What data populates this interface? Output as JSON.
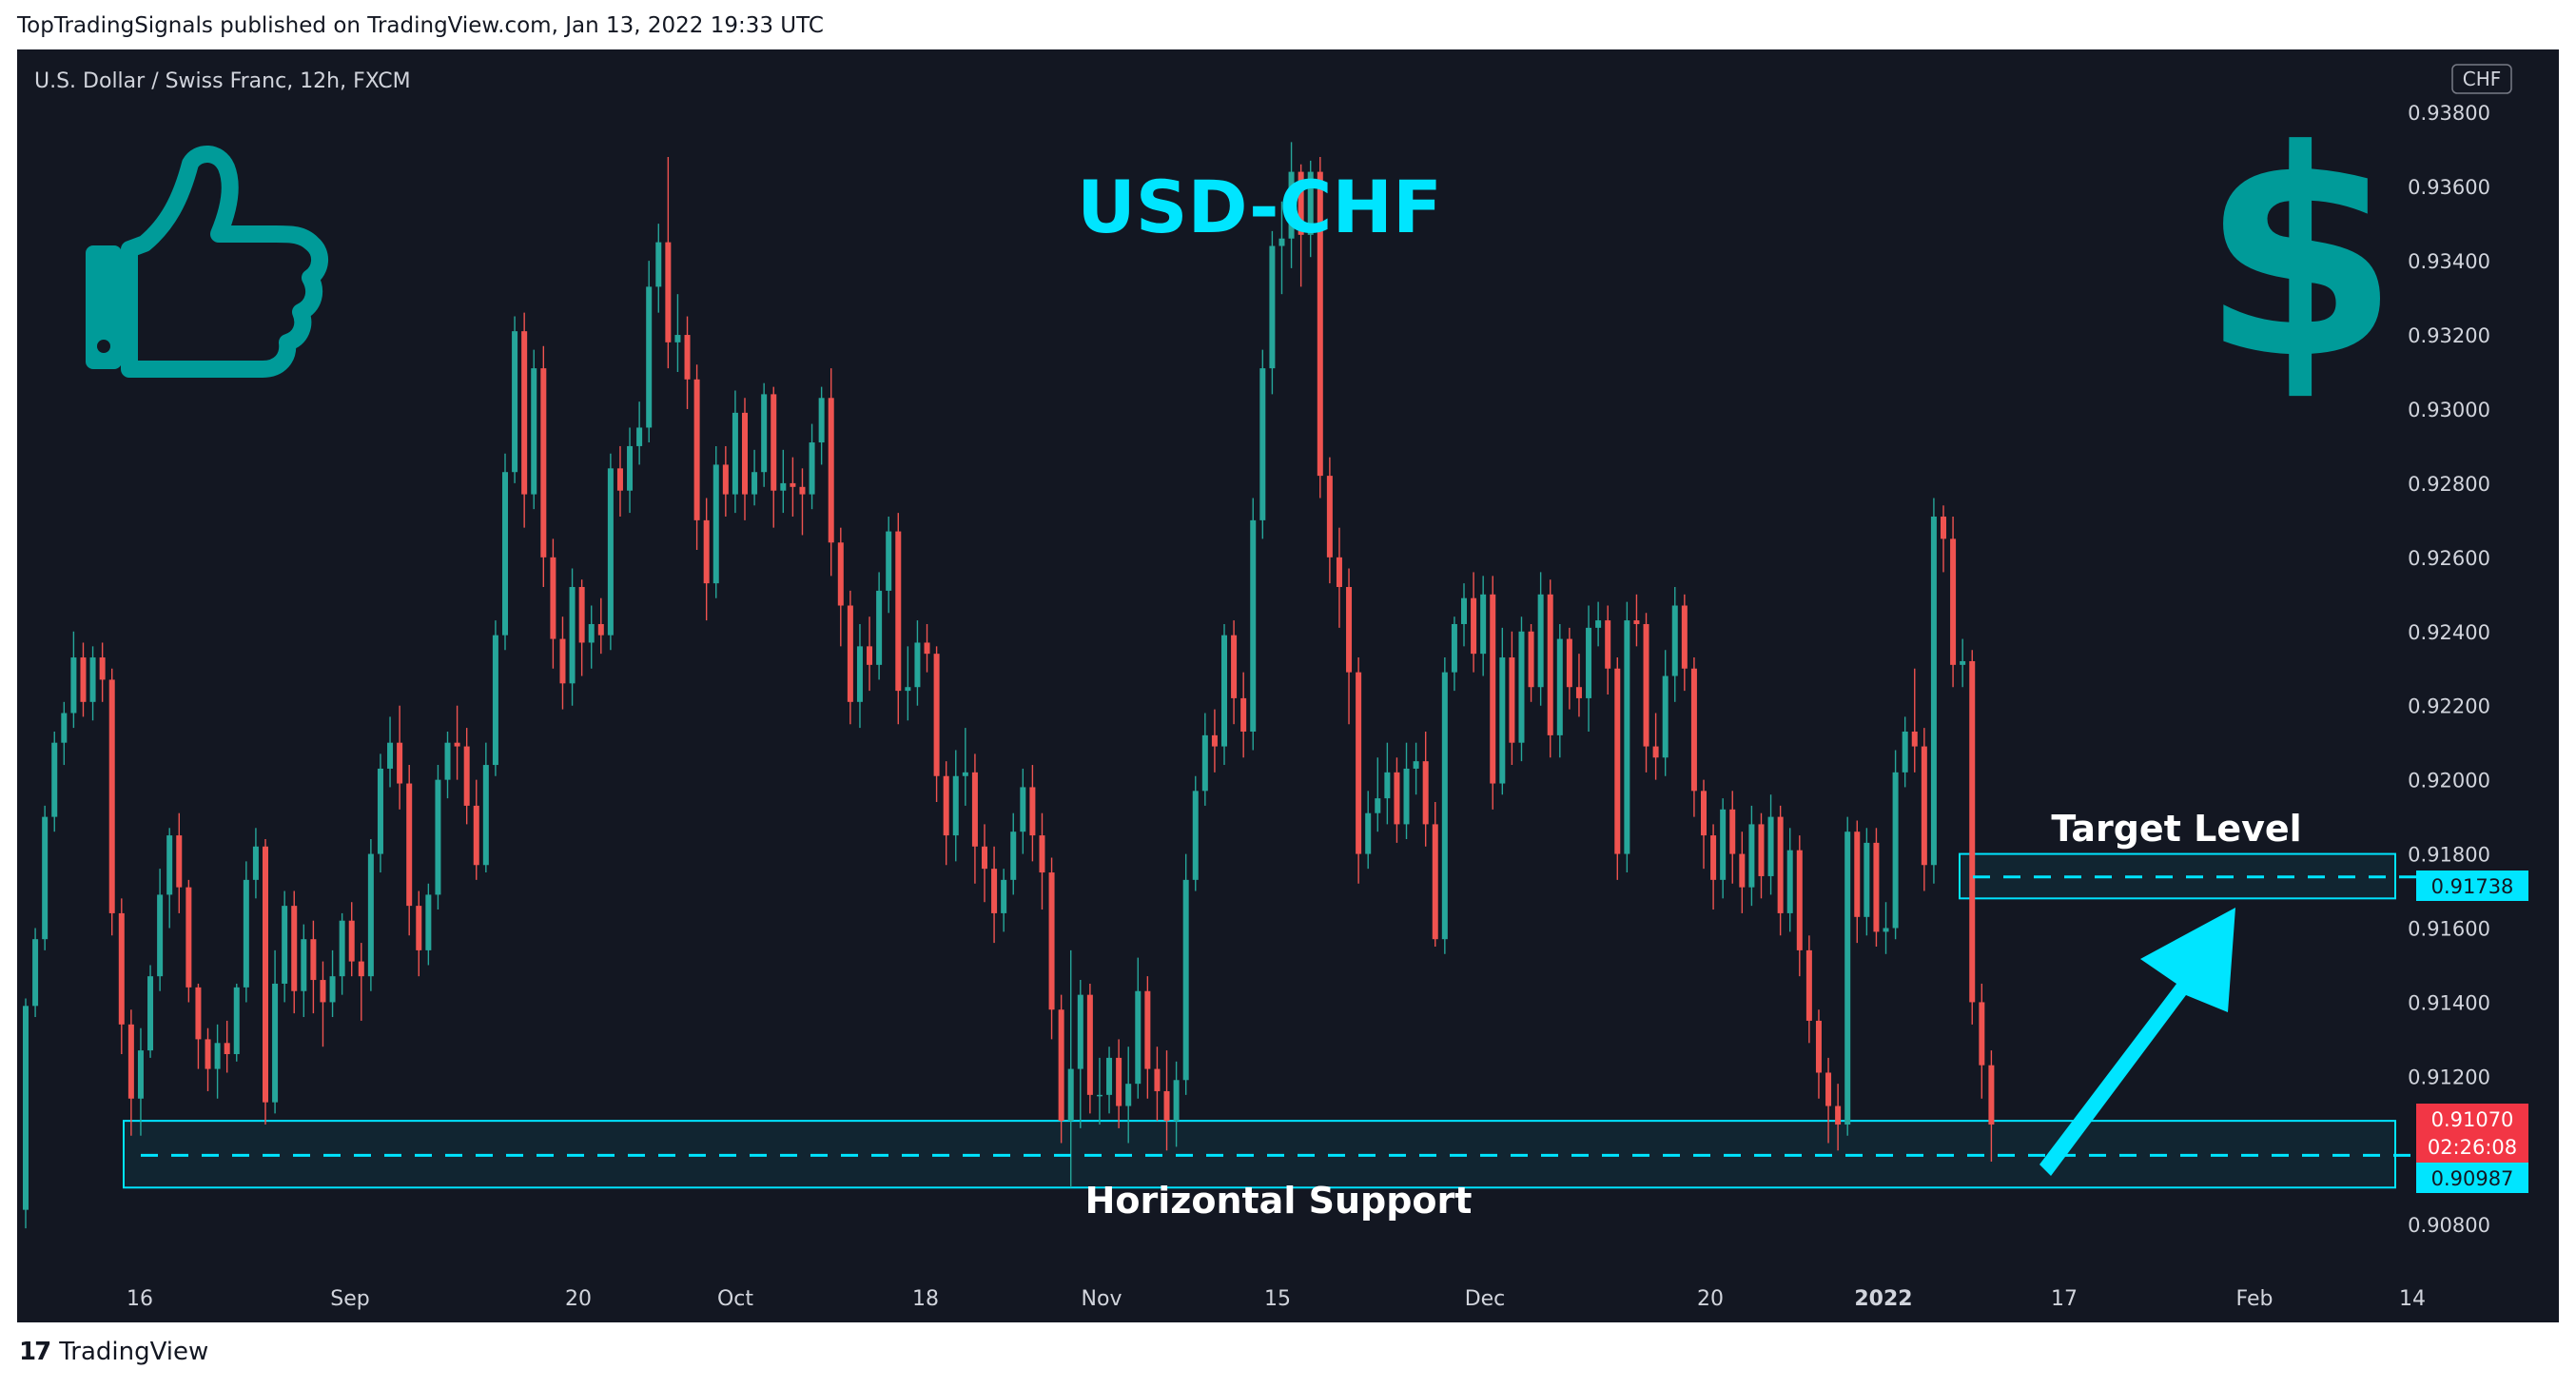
{
  "publisher_line": "TopTradingSignals published on TradingView.com, Jan 13, 2022 19:33 UTC",
  "footer": {
    "logo_glyph": "17",
    "brand": "TradingView"
  },
  "colors": {
    "background": "#131722",
    "up": "#26a69a",
    "down": "#ef5350",
    "accent": "#00e5ff",
    "icon_teal": "#009b99",
    "axis_text": "#d1d4dc"
  },
  "icons": {
    "left": "thumbs-up-icon",
    "right": "dollar-sign-icon"
  },
  "chart_data": {
    "type": "candlestick",
    "symbol_line": "U.S. Dollar / Swiss Franc, 12h, FXCM",
    "title": "USD-CHF",
    "currency_badge": "CHF",
    "y_ticks": [
      "0.93800",
      "0.93600",
      "0.93400",
      "0.93200",
      "0.93000",
      "0.92800",
      "0.92600",
      "0.92400",
      "0.92200",
      "0.92000",
      "0.91800",
      "0.91600",
      "0.91400",
      "0.91200",
      "0.90800"
    ],
    "ylim": [
      0.9068,
      0.9397
    ],
    "x_ticks": [
      {
        "label": "16",
        "bold": false
      },
      {
        "label": "Sep",
        "bold": false
      },
      {
        "label": "20",
        "bold": false
      },
      {
        "label": "Oct",
        "bold": false
      },
      {
        "label": "18",
        "bold": false
      },
      {
        "label": "Nov",
        "bold": false
      },
      {
        "label": "15",
        "bold": false
      },
      {
        "label": "Dec",
        "bold": false
      },
      {
        "label": "20",
        "bold": false
      },
      {
        "label": "2022",
        "bold": true
      },
      {
        "label": "17",
        "bold": false
      },
      {
        "label": "Feb",
        "bold": false
      },
      {
        "label": "14",
        "bold": false
      }
    ],
    "annotations": {
      "support_label": "Horizontal Support",
      "support_level": 0.90987,
      "support_zone": [
        0.909,
        0.9108
      ],
      "target_label": "Target Level",
      "target_level": 0.91738,
      "target_zone": [
        0.9168,
        0.918
      ]
    },
    "price_labels": {
      "target": "0.91738",
      "last_price": "0.91070",
      "countdown": "02:26:08",
      "support": "0.90987"
    },
    "candles": [
      [
        0.9084,
        0.9139,
        0.9079,
        0.9141
      ],
      [
        0.9139,
        0.9157,
        0.9136,
        0.916
      ],
      [
        0.9157,
        0.919,
        0.9154,
        0.9193
      ],
      [
        0.919,
        0.921,
        0.9186,
        0.9213
      ],
      [
        0.921,
        0.9218,
        0.9204,
        0.9221
      ],
      [
        0.9218,
        0.9233,
        0.9214,
        0.924
      ],
      [
        0.9233,
        0.9221,
        0.9217,
        0.9237
      ],
      [
        0.9221,
        0.9233,
        0.9216,
        0.9236
      ],
      [
        0.9233,
        0.9227,
        0.9221,
        0.9237
      ],
      [
        0.9227,
        0.9164,
        0.9158,
        0.923
      ],
      [
        0.9164,
        0.9134,
        0.9126,
        0.9168
      ],
      [
        0.9134,
        0.9114,
        0.9104,
        0.9138
      ],
      [
        0.9114,
        0.9127,
        0.9104,
        0.9133
      ],
      [
        0.9127,
        0.9147,
        0.9125,
        0.915
      ],
      [
        0.9147,
        0.9169,
        0.9143,
        0.9176
      ],
      [
        0.9169,
        0.9185,
        0.916,
        0.9187
      ],
      [
        0.9185,
        0.9171,
        0.9164,
        0.9191
      ],
      [
        0.9171,
        0.9144,
        0.914,
        0.9173
      ],
      [
        0.9144,
        0.913,
        0.9122,
        0.9145
      ],
      [
        0.913,
        0.9122,
        0.9116,
        0.9133
      ],
      [
        0.9122,
        0.9129,
        0.9114,
        0.9134
      ],
      [
        0.9129,
        0.9126,
        0.9121,
        0.9135
      ],
      [
        0.9126,
        0.9144,
        0.9124,
        0.9145
      ],
      [
        0.9144,
        0.9173,
        0.914,
        0.9178
      ],
      [
        0.9173,
        0.9182,
        0.9168,
        0.9187
      ],
      [
        0.9182,
        0.9113,
        0.9107,
        0.9184
      ],
      [
        0.9113,
        0.9145,
        0.911,
        0.9154
      ],
      [
        0.9145,
        0.9166,
        0.914,
        0.917
      ],
      [
        0.9166,
        0.9143,
        0.9137,
        0.917
      ],
      [
        0.9143,
        0.9157,
        0.9136,
        0.9161
      ],
      [
        0.9157,
        0.9146,
        0.9137,
        0.9162
      ],
      [
        0.9146,
        0.914,
        0.9128,
        0.9151
      ],
      [
        0.914,
        0.9147,
        0.9136,
        0.9154
      ],
      [
        0.9147,
        0.9162,
        0.9142,
        0.9164
      ],
      [
        0.9162,
        0.9151,
        0.9147,
        0.9167
      ],
      [
        0.9151,
        0.9147,
        0.9135,
        0.9156
      ],
      [
        0.9147,
        0.918,
        0.9143,
        0.9184
      ],
      [
        0.918,
        0.9203,
        0.9175,
        0.9207
      ],
      [
        0.9203,
        0.921,
        0.9198,
        0.9217
      ],
      [
        0.921,
        0.9199,
        0.9192,
        0.922
      ],
      [
        0.9199,
        0.9166,
        0.9158,
        0.9204
      ],
      [
        0.9166,
        0.9154,
        0.9147,
        0.917
      ],
      [
        0.9154,
        0.9169,
        0.915,
        0.9172
      ],
      [
        0.9169,
        0.92,
        0.9165,
        0.9204
      ],
      [
        0.92,
        0.921,
        0.9195,
        0.9213
      ],
      [
        0.921,
        0.9209,
        0.92,
        0.922
      ],
      [
        0.9209,
        0.9193,
        0.9188,
        0.9214
      ],
      [
        0.9193,
        0.9177,
        0.9173,
        0.92
      ],
      [
        0.9177,
        0.9204,
        0.9175,
        0.921
      ],
      [
        0.9204,
        0.9239,
        0.9201,
        0.9243
      ],
      [
        0.9239,
        0.9283,
        0.9235,
        0.9288
      ],
      [
        0.9283,
        0.9321,
        0.928,
        0.9325
      ],
      [
        0.9321,
        0.9277,
        0.9268,
        0.9326
      ],
      [
        0.9277,
        0.9311,
        0.9273,
        0.9316
      ],
      [
        0.9311,
        0.926,
        0.9252,
        0.9317
      ],
      [
        0.926,
        0.9238,
        0.923,
        0.9265
      ],
      [
        0.9238,
        0.9226,
        0.9219,
        0.9244
      ],
      [
        0.9226,
        0.9252,
        0.922,
        0.9257
      ],
      [
        0.9252,
        0.9237,
        0.9228,
        0.9254
      ],
      [
        0.9237,
        0.9242,
        0.923,
        0.9247
      ],
      [
        0.9242,
        0.9239,
        0.9234,
        0.9249
      ],
      [
        0.9239,
        0.9284,
        0.9235,
        0.9288
      ],
      [
        0.9284,
        0.9278,
        0.9271,
        0.929
      ],
      [
        0.9278,
        0.929,
        0.9272,
        0.9295
      ],
      [
        0.929,
        0.9295,
        0.9285,
        0.9302
      ],
      [
        0.9295,
        0.9333,
        0.9291,
        0.934
      ],
      [
        0.9333,
        0.9345,
        0.9326,
        0.935
      ],
      [
        0.9345,
        0.9318,
        0.9311,
        0.9368
      ],
      [
        0.9318,
        0.932,
        0.931,
        0.9331
      ],
      [
        0.932,
        0.9308,
        0.93,
        0.9325
      ],
      [
        0.9308,
        0.927,
        0.9262,
        0.9312
      ],
      [
        0.927,
        0.9253,
        0.9243,
        0.9276
      ],
      [
        0.9253,
        0.9285,
        0.9249,
        0.929
      ],
      [
        0.9285,
        0.9277,
        0.9271,
        0.929
      ],
      [
        0.9277,
        0.9299,
        0.9272,
        0.9305
      ],
      [
        0.9299,
        0.9277,
        0.927,
        0.9303
      ],
      [
        0.9277,
        0.9283,
        0.9274,
        0.9289
      ],
      [
        0.9283,
        0.9304,
        0.9279,
        0.9307
      ],
      [
        0.9304,
        0.9278,
        0.9268,
        0.9306
      ],
      [
        0.9278,
        0.928,
        0.9272,
        0.9289
      ],
      [
        0.928,
        0.9279,
        0.9271,
        0.9287
      ],
      [
        0.9279,
        0.9277,
        0.9266,
        0.9284
      ],
      [
        0.9277,
        0.9291,
        0.9273,
        0.9296
      ],
      [
        0.9291,
        0.9303,
        0.9285,
        0.9306
      ],
      [
        0.9303,
        0.9264,
        0.9255,
        0.9311
      ],
      [
        0.9264,
        0.9247,
        0.9236,
        0.9268
      ],
      [
        0.9247,
        0.9221,
        0.9215,
        0.9251
      ],
      [
        0.9221,
        0.9236,
        0.9214,
        0.9242
      ],
      [
        0.9236,
        0.9231,
        0.9224,
        0.9244
      ],
      [
        0.9231,
        0.9251,
        0.9227,
        0.9256
      ],
      [
        0.9251,
        0.9267,
        0.9245,
        0.9271
      ],
      [
        0.9267,
        0.9224,
        0.9215,
        0.9272
      ],
      [
        0.9224,
        0.9225,
        0.9216,
        0.9236
      ],
      [
        0.9225,
        0.9237,
        0.922,
        0.9243
      ],
      [
        0.9237,
        0.9234,
        0.9229,
        0.9242
      ],
      [
        0.9234,
        0.9201,
        0.9194,
        0.9236
      ],
      [
        0.9201,
        0.9185,
        0.9177,
        0.9205
      ],
      [
        0.9185,
        0.9201,
        0.9178,
        0.9208
      ],
      [
        0.9201,
        0.9202,
        0.9193,
        0.9214
      ],
      [
        0.9202,
        0.9182,
        0.9172,
        0.9207
      ],
      [
        0.9182,
        0.9176,
        0.9167,
        0.9188
      ],
      [
        0.9176,
        0.9164,
        0.9156,
        0.9182
      ],
      [
        0.9164,
        0.9173,
        0.9159,
        0.9176
      ],
      [
        0.9173,
        0.9186,
        0.9169,
        0.9191
      ],
      [
        0.9186,
        0.9198,
        0.918,
        0.9203
      ],
      [
        0.9198,
        0.9185,
        0.9178,
        0.9204
      ],
      [
        0.9185,
        0.9175,
        0.9165,
        0.9191
      ],
      [
        0.9175,
        0.9138,
        0.913,
        0.9179
      ],
      [
        0.9138,
        0.9108,
        0.9102,
        0.9142
      ],
      [
        0.9108,
        0.9122,
        0.909,
        0.9154
      ],
      [
        0.9122,
        0.9142,
        0.9106,
        0.9146
      ],
      [
        0.9142,
        0.9115,
        0.911,
        0.9145
      ],
      [
        0.9115,
        0.9115,
        0.9107,
        0.9125
      ],
      [
        0.9115,
        0.9125,
        0.911,
        0.9128
      ],
      [
        0.9125,
        0.9112,
        0.9106,
        0.913
      ],
      [
        0.9112,
        0.9118,
        0.9102,
        0.9128
      ],
      [
        0.9118,
        0.9143,
        0.9114,
        0.9152
      ],
      [
        0.9143,
        0.9122,
        0.9114,
        0.9147
      ],
      [
        0.9122,
        0.9116,
        0.9108,
        0.9128
      ],
      [
        0.9116,
        0.9108,
        0.91,
        0.9127
      ],
      [
        0.9108,
        0.9119,
        0.9101,
        0.9124
      ],
      [
        0.9119,
        0.9173,
        0.9115,
        0.918
      ],
      [
        0.9173,
        0.9197,
        0.917,
        0.9201
      ],
      [
        0.9197,
        0.9212,
        0.9193,
        0.9218
      ],
      [
        0.9212,
        0.9209,
        0.9202,
        0.9219
      ],
      [
        0.9209,
        0.9239,
        0.9204,
        0.9242
      ],
      [
        0.9239,
        0.9222,
        0.9215,
        0.9243
      ],
      [
        0.9222,
        0.9213,
        0.9206,
        0.9229
      ],
      [
        0.9213,
        0.927,
        0.9208,
        0.9276
      ],
      [
        0.927,
        0.9311,
        0.9265,
        0.9316
      ],
      [
        0.9311,
        0.9344,
        0.9304,
        0.9348
      ],
      [
        0.9344,
        0.9346,
        0.9331,
        0.9356
      ],
      [
        0.9346,
        0.9364,
        0.9338,
        0.9372
      ],
      [
        0.9364,
        0.9347,
        0.9333,
        0.9366
      ],
      [
        0.9347,
        0.9364,
        0.9341,
        0.9367
      ],
      [
        0.9364,
        0.9282,
        0.9276,
        0.9368
      ],
      [
        0.9282,
        0.926,
        0.9253,
        0.9287
      ],
      [
        0.926,
        0.9252,
        0.9241,
        0.9268
      ],
      [
        0.9252,
        0.9229,
        0.9215,
        0.9257
      ],
      [
        0.9229,
        0.918,
        0.9172,
        0.9233
      ],
      [
        0.918,
        0.9191,
        0.9176,
        0.9197
      ],
      [
        0.9191,
        0.9195,
        0.9186,
        0.9206
      ],
      [
        0.9195,
        0.9202,
        0.9188,
        0.921
      ],
      [
        0.9202,
        0.9188,
        0.9183,
        0.9206
      ],
      [
        0.9188,
        0.9203,
        0.9184,
        0.921
      ],
      [
        0.9203,
        0.9205,
        0.9196,
        0.921
      ],
      [
        0.9205,
        0.9188,
        0.9182,
        0.9213
      ],
      [
        0.9188,
        0.9157,
        0.9155,
        0.9194
      ],
      [
        0.9157,
        0.9229,
        0.9153,
        0.9233
      ],
      [
        0.9229,
        0.9242,
        0.9224,
        0.9244
      ],
      [
        0.9242,
        0.9249,
        0.9236,
        0.9253
      ],
      [
        0.9249,
        0.9234,
        0.9229,
        0.9256
      ],
      [
        0.9234,
        0.925,
        0.9228,
        0.9255
      ],
      [
        0.925,
        0.9199,
        0.9192,
        0.9255
      ],
      [
        0.9199,
        0.9233,
        0.9196,
        0.9241
      ],
      [
        0.9233,
        0.921,
        0.9204,
        0.924
      ],
      [
        0.921,
        0.924,
        0.9205,
        0.9244
      ],
      [
        0.924,
        0.9225,
        0.9221,
        0.9242
      ],
      [
        0.9225,
        0.925,
        0.922,
        0.9256
      ],
      [
        0.925,
        0.9212,
        0.9206,
        0.9254
      ],
      [
        0.9212,
        0.9238,
        0.9206,
        0.9242
      ],
      [
        0.9238,
        0.9225,
        0.9219,
        0.9241
      ],
      [
        0.9225,
        0.9222,
        0.9217,
        0.9234
      ],
      [
        0.9222,
        0.9241,
        0.9213,
        0.9247
      ],
      [
        0.9241,
        0.9243,
        0.9236,
        0.9248
      ],
      [
        0.9243,
        0.923,
        0.9223,
        0.9247
      ],
      [
        0.923,
        0.918,
        0.9173,
        0.9233
      ],
      [
        0.918,
        0.9243,
        0.9175,
        0.9248
      ],
      [
        0.9243,
        0.9242,
        0.9236,
        0.925
      ],
      [
        0.9242,
        0.9209,
        0.9202,
        0.9245
      ],
      [
        0.9209,
        0.9206,
        0.92,
        0.9218
      ],
      [
        0.9206,
        0.9228,
        0.9201,
        0.9235
      ],
      [
        0.9228,
        0.9247,
        0.9221,
        0.9252
      ],
      [
        0.9247,
        0.923,
        0.9224,
        0.925
      ],
      [
        0.923,
        0.9197,
        0.919,
        0.9233
      ],
      [
        0.9197,
        0.9185,
        0.9176,
        0.92
      ],
      [
        0.9185,
        0.9173,
        0.9165,
        0.9188
      ],
      [
        0.9173,
        0.9192,
        0.9168,
        0.9195
      ],
      [
        0.9192,
        0.918,
        0.9172,
        0.9197
      ],
      [
        0.918,
        0.9171,
        0.9164,
        0.9186
      ],
      [
        0.9171,
        0.9188,
        0.9166,
        0.9193
      ],
      [
        0.9188,
        0.9174,
        0.9168,
        0.9191
      ],
      [
        0.9174,
        0.919,
        0.9169,
        0.9196
      ],
      [
        0.919,
        0.9164,
        0.9158,
        0.9193
      ],
      [
        0.9164,
        0.9181,
        0.9159,
        0.9187
      ],
      [
        0.9181,
        0.9154,
        0.9147,
        0.9185
      ],
      [
        0.9154,
        0.9135,
        0.9129,
        0.9158
      ],
      [
        0.9135,
        0.9121,
        0.9114,
        0.9138
      ],
      [
        0.9121,
        0.9112,
        0.9102,
        0.9125
      ],
      [
        0.9112,
        0.9107,
        0.91,
        0.9118
      ],
      [
        0.9107,
        0.9186,
        0.9104,
        0.919
      ],
      [
        0.9186,
        0.9163,
        0.9156,
        0.9189
      ],
      [
        0.9163,
        0.9183,
        0.9158,
        0.9187
      ],
      [
        0.9183,
        0.9159,
        0.9155,
        0.9187
      ],
      [
        0.9159,
        0.916,
        0.9153,
        0.9167
      ],
      [
        0.916,
        0.9202,
        0.9157,
        0.9208
      ],
      [
        0.9202,
        0.9213,
        0.9198,
        0.9217
      ],
      [
        0.9213,
        0.9209,
        0.9202,
        0.923
      ],
      [
        0.9209,
        0.9177,
        0.917,
        0.9214
      ],
      [
        0.9177,
        0.9271,
        0.9172,
        0.9276
      ],
      [
        0.9271,
        0.9265,
        0.9256,
        0.9274
      ],
      [
        0.9265,
        0.9231,
        0.9225,
        0.9271
      ],
      [
        0.9231,
        0.9232,
        0.9225,
        0.9238
      ],
      [
        0.9232,
        0.914,
        0.9134,
        0.9235
      ],
      [
        0.914,
        0.9123,
        0.9114,
        0.9145
      ],
      [
        0.9123,
        0.9107,
        0.9097,
        0.9127
      ]
    ]
  }
}
